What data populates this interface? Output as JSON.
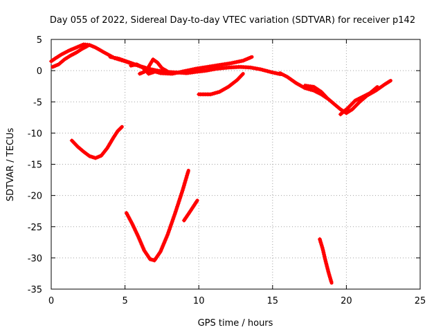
{
  "chart_data": {
    "type": "scatter",
    "title": "Day 055 of 2022, Sidereal Day-to-day VTEC variation (SDTVAR) for receiver p142",
    "xlabel": "GPS time / hours",
    "ylabel": "SDTVAR / TECUs",
    "xlim": [
      0,
      25
    ],
    "ylim": [
      -35,
      5
    ],
    "xticks": [
      0,
      5,
      10,
      15,
      20,
      25
    ],
    "yticks": [
      5,
      0,
      -5,
      -10,
      -15,
      -20,
      -25,
      -30,
      -35
    ],
    "grid": true,
    "marker": "+",
    "series_color": "#ff0000",
    "segments": [
      {
        "name": "arc-a",
        "x": [
          0.0,
          0.3,
          0.7,
          1.2,
          1.7,
          2.2,
          2.6,
          3.0,
          3.6,
          4.3,
          5.0,
          5.6,
          6.2,
          6.6,
          7.2,
          7.8,
          8.5,
          9.2,
          9.8,
          10.5,
          11.2,
          12.0,
          12.8,
          13.5,
          14.2,
          15.0,
          15.6
        ],
        "y": [
          1.5,
          2.0,
          2.6,
          3.2,
          3.7,
          4.2,
          4.1,
          3.7,
          2.9,
          2.0,
          1.5,
          1.0,
          0.6,
          0.3,
          0.0,
          -0.2,
          -0.3,
          -0.4,
          -0.2,
          0.0,
          0.3,
          0.5,
          0.6,
          0.5,
          0.2,
          -0.3,
          -0.6
        ]
      },
      {
        "name": "arc-b",
        "x": [
          0.1,
          0.5,
          0.9,
          1.3,
          1.7,
          2.1,
          2.5
        ],
        "y": [
          0.6,
          1.0,
          1.8,
          2.4,
          2.9,
          3.5,
          4.0
        ]
      },
      {
        "name": "arc-c",
        "x": [
          4.0,
          4.6,
          5.2,
          5.8,
          6.4,
          6.8,
          7.4,
          8.2,
          9.0,
          9.8,
          10.6,
          11.4,
          12.2,
          13.0,
          13.6
        ],
        "y": [
          2.2,
          1.9,
          1.4,
          0.9,
          0.3,
          0.0,
          -0.4,
          -0.5,
          -0.1,
          0.3,
          0.6,
          0.9,
          1.2,
          1.6,
          2.2
        ]
      },
      {
        "name": "arc-d",
        "x": [
          6.0,
          6.3,
          6.6,
          6.9,
          7.2,
          7.5,
          8.0
        ],
        "y": [
          -0.5,
          -0.2,
          0.6,
          1.8,
          1.3,
          0.4,
          -0.3
        ]
      },
      {
        "name": "arc-e",
        "x": [
          5.4,
          5.8,
          6.2,
          6.6,
          7.0
        ],
        "y": [
          0.8,
          1.0,
          0.5,
          -0.5,
          -0.2
        ]
      },
      {
        "name": "arc-f",
        "x": [
          10.0,
          10.8,
          11.4,
          12.0,
          12.6,
          13.0
        ],
        "y": [
          -3.8,
          -3.8,
          -3.4,
          -2.6,
          -1.5,
          -0.5
        ]
      },
      {
        "name": "arc-g",
        "x": [
          15.5,
          16.0,
          16.6,
          17.2,
          17.8,
          18.3,
          18.8,
          19.2,
          19.6,
          20.0,
          20.4,
          20.9,
          21.4,
          22.0,
          22.6,
          23.0
        ],
        "y": [
          -0.4,
          -1.0,
          -2.0,
          -2.8,
          -3.2,
          -3.8,
          -4.6,
          -5.4,
          -6.2,
          -6.8,
          -6.2,
          -5.0,
          -4.0,
          -3.2,
          -2.2,
          -1.6
        ]
      },
      {
        "name": "arc-h",
        "x": [
          17.2,
          17.8,
          18.3,
          18.7
        ],
        "y": [
          -2.4,
          -2.6,
          -3.4,
          -4.4
        ]
      },
      {
        "name": "arc-i",
        "x": [
          19.6,
          20.1,
          20.6,
          21.1,
          21.6,
          22.1
        ],
        "y": [
          -7.0,
          -6.0,
          -4.8,
          -4.2,
          -3.6,
          -2.6
        ]
      },
      {
        "name": "arc-j",
        "x": [
          1.4,
          1.8,
          2.2,
          2.6,
          3.0,
          3.4,
          3.8,
          4.2,
          4.5,
          4.8
        ],
        "y": [
          -11.2,
          -12.2,
          -13.0,
          -13.7,
          -14.0,
          -13.6,
          -12.4,
          -10.8,
          -9.7,
          -9.0
        ]
      },
      {
        "name": "arc-k",
        "x": [
          5.1,
          5.5,
          5.9,
          6.3,
          6.7,
          7.0,
          7.4,
          7.9,
          8.4,
          8.9,
          9.3
        ],
        "y": [
          -22.8,
          -24.6,
          -26.6,
          -28.8,
          -30.2,
          -30.4,
          -29.0,
          -26.2,
          -22.8,
          -19.2,
          -16.0
        ]
      },
      {
        "name": "arc-l",
        "x": [
          9.0,
          9.4,
          9.9
        ],
        "y": [
          -24.0,
          -22.6,
          -20.8
        ]
      },
      {
        "name": "arc-m",
        "x": [
          18.2,
          18.4,
          18.6,
          18.8,
          19.0
        ],
        "y": [
          -27.0,
          -28.6,
          -30.6,
          -32.4,
          -34.0
        ]
      }
    ]
  }
}
